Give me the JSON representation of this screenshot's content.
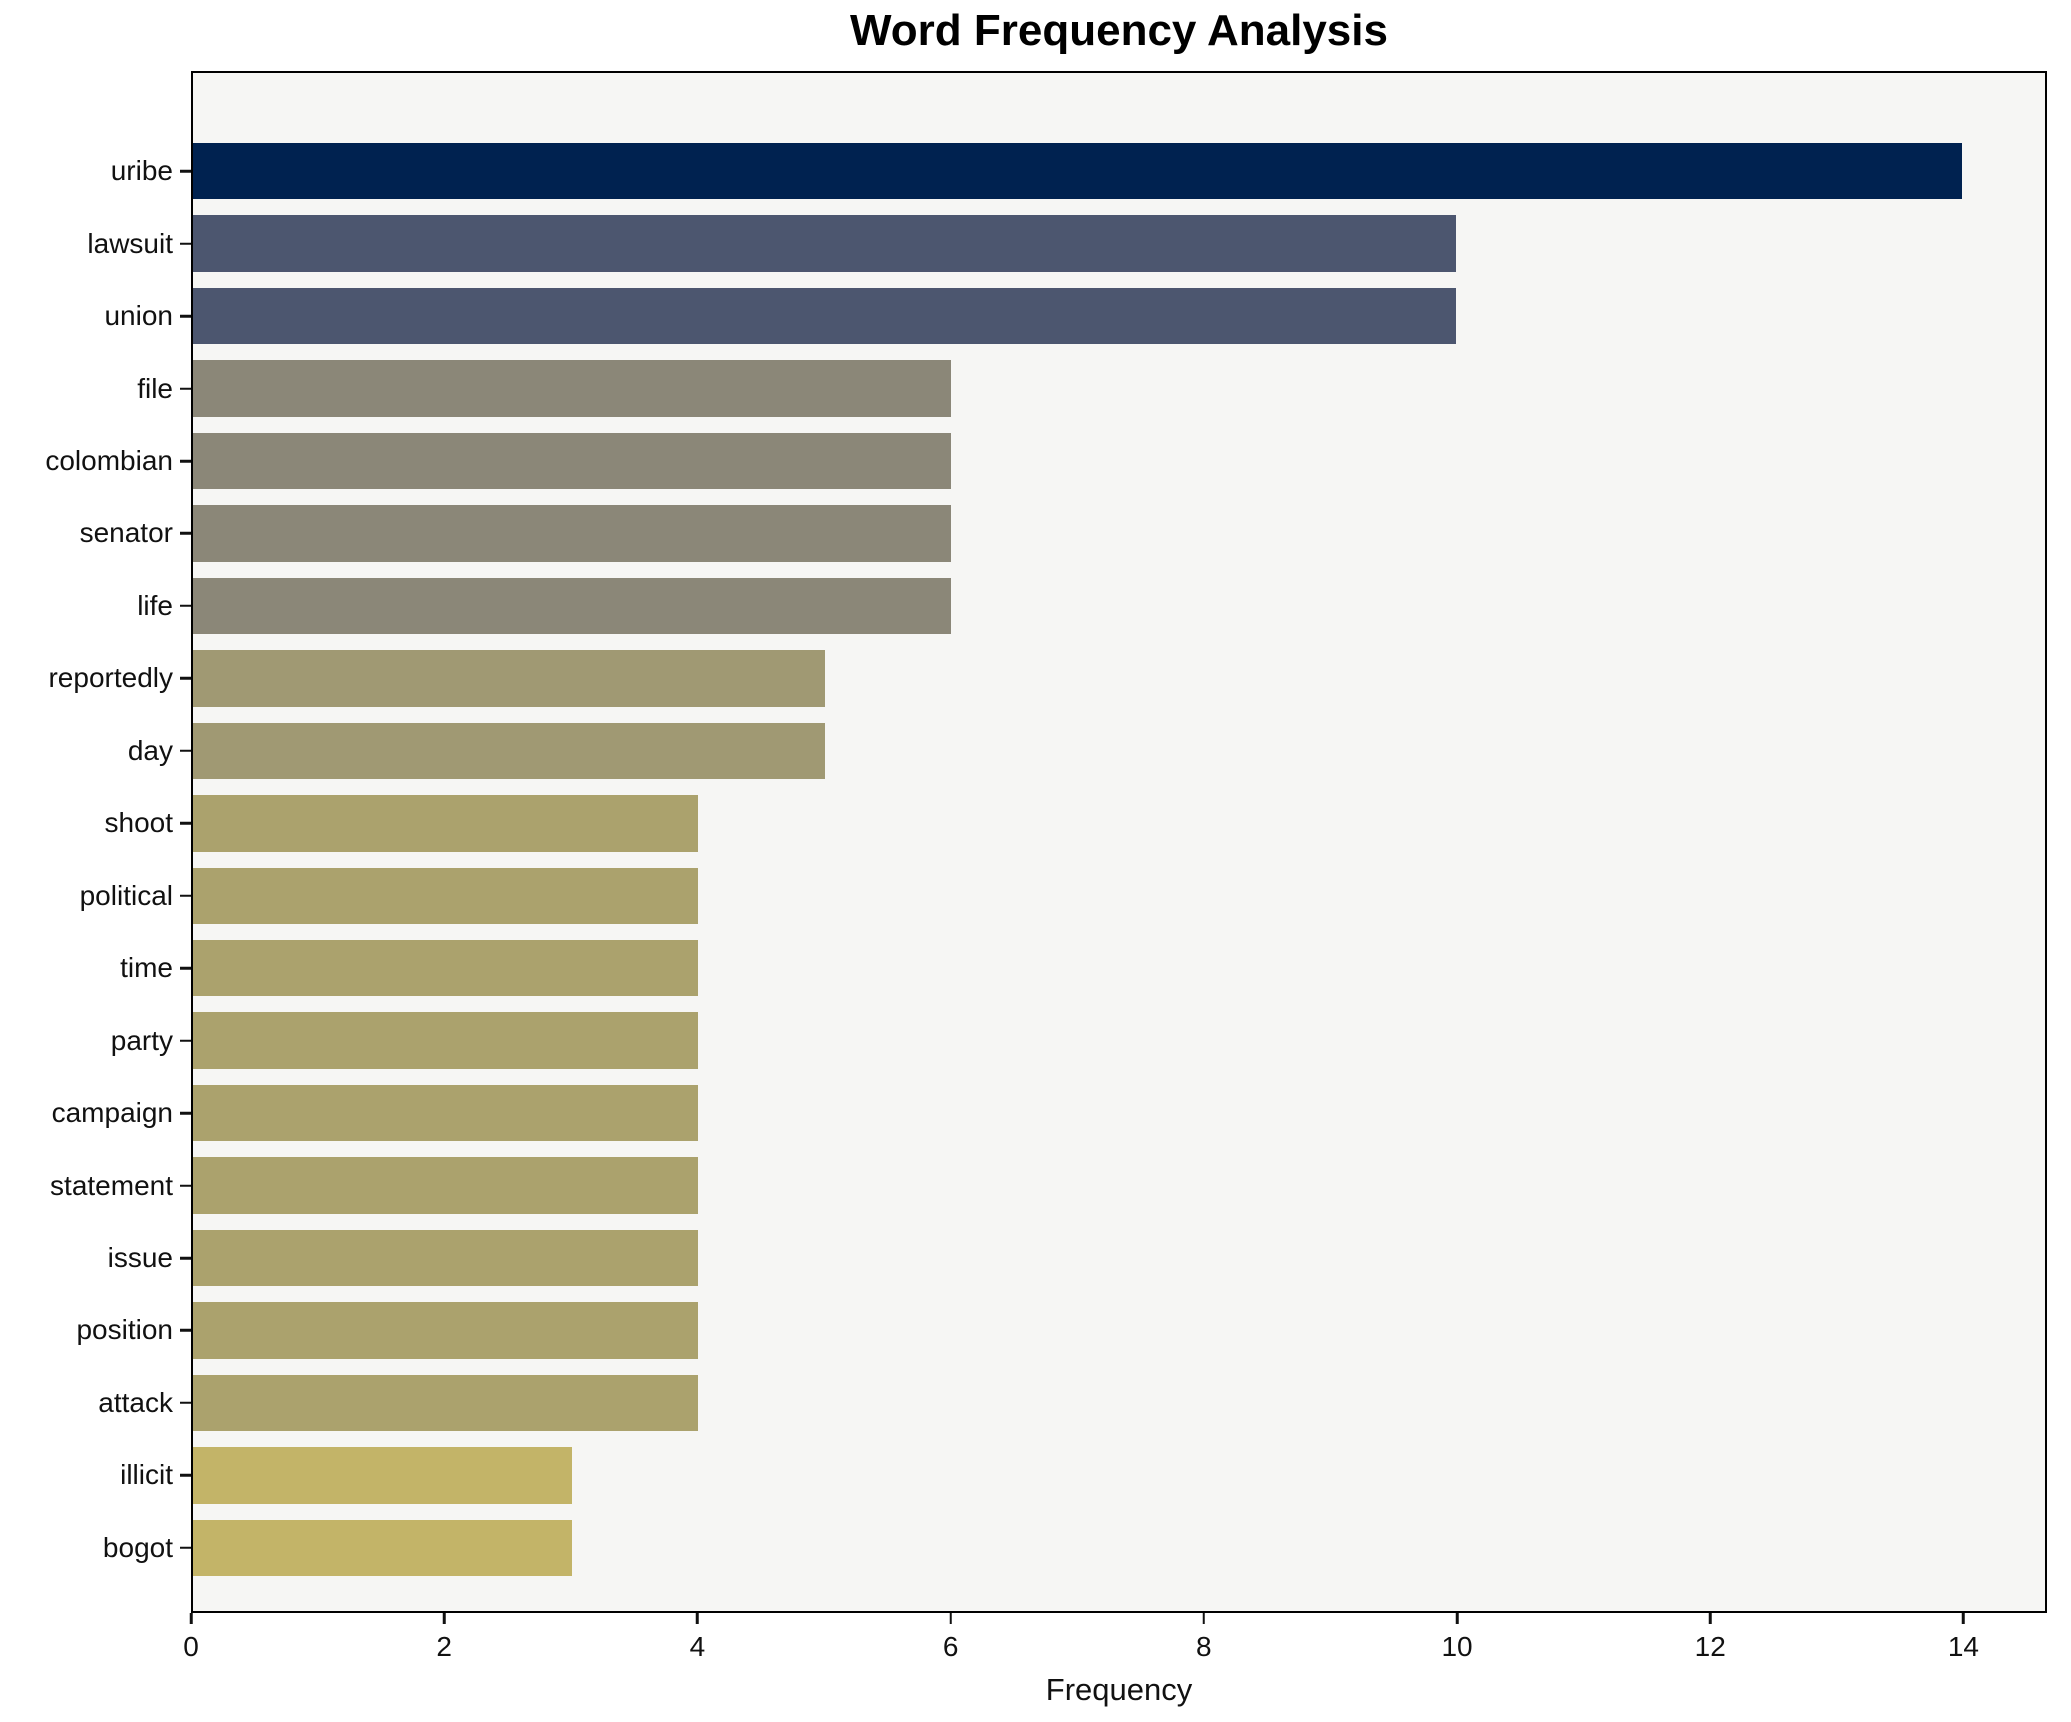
{
  "title": "Word Frequency Analysis",
  "xaxis": {
    "label": "Frequency"
  },
  "chart_data": {
    "type": "bar",
    "orientation": "horizontal",
    "title": "Word Frequency Analysis",
    "xlabel": "Frequency",
    "ylabel": "",
    "categories": [
      "uribe",
      "lawsuit",
      "union",
      "file",
      "colombian",
      "senator",
      "life",
      "reportedly",
      "day",
      "shoot",
      "political",
      "time",
      "party",
      "campaign",
      "statement",
      "issue",
      "position",
      "attack",
      "illicit",
      "bogot"
    ],
    "values": [
      14,
      10,
      10,
      6,
      6,
      6,
      6,
      5,
      5,
      4,
      4,
      4,
      4,
      4,
      4,
      4,
      4,
      4,
      3,
      3
    ],
    "bar_colors": [
      "#002250",
      "#4c566f",
      "#4c566f",
      "#8b8778",
      "#8b8778",
      "#8b8778",
      "#8b8778",
      "#a09973",
      "#a09973",
      "#aba26d",
      "#aba26d",
      "#aba26d",
      "#aba26d",
      "#aba26d",
      "#aba26d",
      "#aba26d",
      "#aba26d",
      "#aba26d",
      "#c3b468",
      "#c3b468"
    ],
    "xlim": [
      0,
      14.66
    ],
    "xticks": [
      0,
      2,
      4,
      6,
      8,
      10,
      12,
      14
    ],
    "grid": false,
    "legend": "none",
    "plot_bg": "#f6f6f4",
    "figure_bg": "#ffffff",
    "spine_color": "#000000"
  }
}
